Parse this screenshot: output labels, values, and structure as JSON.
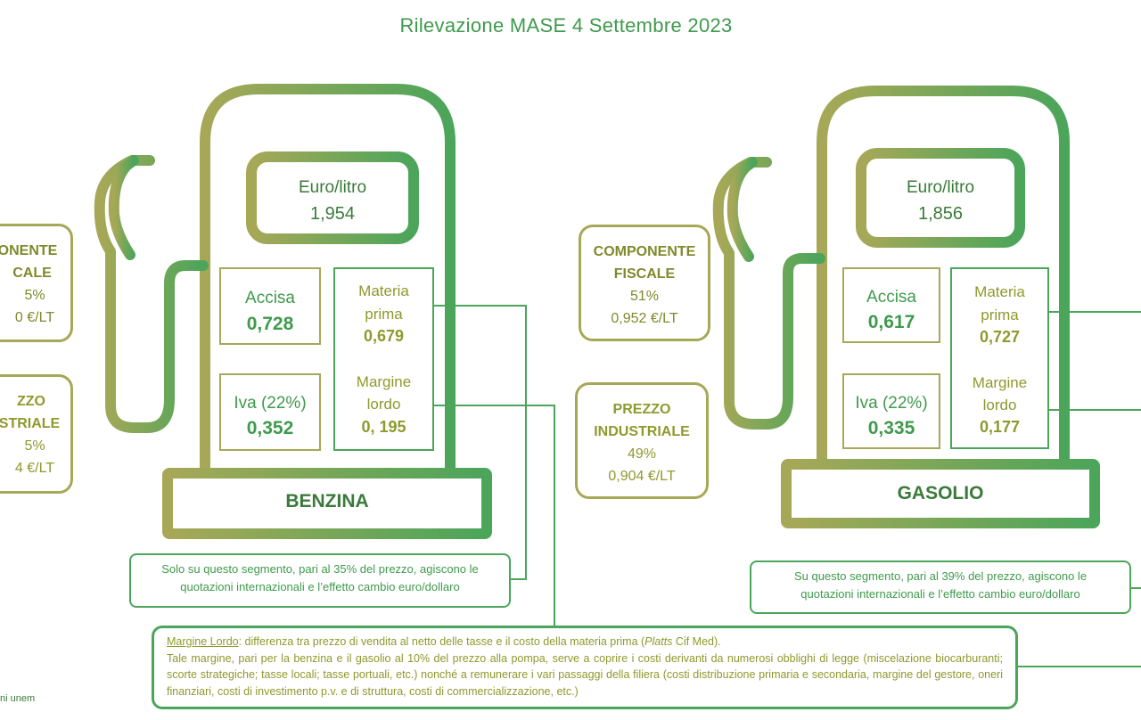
{
  "title": "Rilevazione MASE 4 Settembre 2023",
  "colors": {
    "olive": "#a7a857",
    "green": "#4ba55a",
    "text_green": "#3f9a4c"
  },
  "benzina": {
    "name": "BENZINA",
    "price_label": "Euro/litro",
    "price_value": "1,954",
    "accisa_label": "Accisa",
    "accisa_value": "0,728",
    "iva_label": "Iva (22%)",
    "iva_value": "0,352",
    "materia_label_1": "Materia",
    "materia_label_2": "prima",
    "materia_value": "0,679",
    "margine_label_1": "Margine",
    "margine_label_2": "lordo",
    "margine_value": "0, 195",
    "fiscale_box": {
      "line1": "ONENTE",
      "line2": "CALE",
      "line3": "5%",
      "line4": "0 €/LT"
    },
    "industriale_box": {
      "line1": "ZZO",
      "line2": "STRIALE",
      "line3": "5%",
      "line4": "4 €/LT"
    },
    "note_line1": "Solo su questo segmento, pari al 35% del prezzo, agiscono le",
    "note_line2": "quotazioni internazionali e l’effetto cambio euro/dollaro"
  },
  "gasolio": {
    "name": "GASOLIO",
    "price_label": "Euro/litro",
    "price_value": "1,856",
    "accisa_label": "Accisa",
    "accisa_value": "0,617",
    "iva_label": "Iva (22%)",
    "iva_value": "0,335",
    "materia_label_1": "Materia",
    "materia_label_2": "prima",
    "materia_value": "0,727",
    "margine_label_1": "Margine",
    "margine_label_2": "lordo",
    "margine_value": "0,177",
    "fiscale_box": {
      "line1": "COMPONENTE",
      "line2": "FISCALE",
      "line3": "51%",
      "line4": "0,952 €/LT"
    },
    "industriale_box": {
      "line1": "PREZZO",
      "line2": "INDUSTRIALE",
      "line3": "49%",
      "line4": "0,904 €/LT"
    },
    "note_line1": "Su questo segmento, pari al 39% del prezzo, agiscono le",
    "note_line2": "quotazioni internazionali e l’effetto cambio euro/dollaro"
  },
  "margine_note": {
    "term": "Margine Lordo",
    "def_part1": ": differenza tra prezzo di vendita al netto delle tasse e il costo della materia prima (",
    "platts": "Platts",
    "def_part2": " Cif Med).",
    "body": "Tale margine, pari per la benzina e il gasolio al 10% del prezzo alla pompa, serve a coprire i costi derivanti da numerosi obblighi di legge (miscelazione biocarburanti; scorte strategiche; tasse locali; tasse portuali, etc.) nonché a remunerare i vari passaggi della filiera (costi distribuzione primaria e secondaria, margine del gestore, oneri finanziari, costi di investimento p.v. e di struttura, costi di commercializzazione, etc.)"
  },
  "footer": "ni unem"
}
